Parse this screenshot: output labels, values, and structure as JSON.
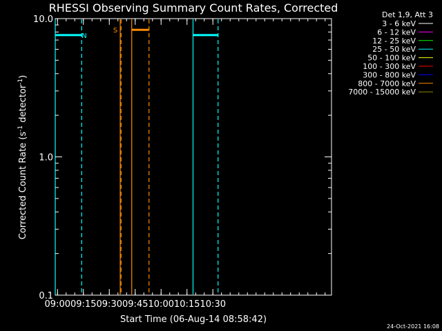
{
  "chart_data": {
    "type": "line",
    "title": "RHESSI Observing Summary Count Rates, Corrected",
    "xlabel": "Start Time (06-Aug-14 08:58:42)",
    "ylabel_prefix": "Corrected Count Rate (s",
    "ylabel_sup1": "-1",
    "ylabel_mid": " detector",
    "ylabel_sup2": "-1",
    "ylabel_suffix": ")",
    "y_scale": "log",
    "ylim": [
      0.1,
      10.0
    ],
    "xlim": [
      "08:58:42",
      "11:38:42"
    ],
    "x_ticks": [
      "09:00",
      "09:15",
      "09:30",
      "09:45",
      "10:00",
      "10:15",
      "10:30"
    ],
    "y_ticks": [
      "0.1",
      "1.0",
      "10.0"
    ],
    "legend_header": "Det 1,9, Att 3",
    "legend_placement": "right",
    "legend": [
      {
        "name": "3 - 6 keV",
        "color": "#ffffff"
      },
      {
        "name": "6 - 12 keV",
        "color": "#ff00ff"
      },
      {
        "name": "12 - 25 keV",
        "color": "#00ff00"
      },
      {
        "name": "25 - 50 keV",
        "color": "#00ffff"
      },
      {
        "name": "50 - 100 keV",
        "color": "#ffff00"
      },
      {
        "name": "100 - 300 keV",
        "color": "#ff0000"
      },
      {
        "name": "300 - 800 keV",
        "color": "#0000ff"
      },
      {
        "name": "800 - 7000 keV",
        "color": "#ff8c00"
      },
      {
        "name": "7000 - 15000 keV",
        "color": "#8b8b00"
      }
    ],
    "segments": [
      {
        "color": "#00ffff",
        "start": "08:58:42",
        "end": "09:14:00",
        "y": 7.6
      },
      {
        "color": "#00ffff",
        "start": "10:18:30",
        "end": "10:33:00",
        "y": 7.6
      },
      {
        "color": "#ff8c00",
        "start": "09:43:00",
        "end": "09:53:00",
        "y": 8.3
      }
    ],
    "markers": [
      {
        "time": "08:58:42",
        "color": "#00ffff",
        "style": "solid"
      },
      {
        "time": "09:14:00",
        "color": "#00ffff",
        "style": "dashed"
      },
      {
        "time": "09:36:20",
        "color": "#ff8c00",
        "style": "solid"
      },
      {
        "time": "09:36:50",
        "color": "#ff8c00",
        "style": "dashed"
      },
      {
        "time": "09:43:00",
        "color": "#ff8c00",
        "style": "solid"
      },
      {
        "time": "09:53:00",
        "color": "#ff8c00",
        "style": "dashed"
      },
      {
        "time": "10:18:30",
        "color": "#00ffff",
        "style": "solid"
      },
      {
        "time": "10:33:00",
        "color": "#00ffff",
        "style": "dashed"
      }
    ],
    "labels": [
      {
        "text": "N",
        "color": "#00ffff",
        "time": "09:15:30",
        "y": 7.6
      },
      {
        "text": "S",
        "color": "#ff8c00",
        "time": "09:33:30",
        "y": 8.3
      }
    ],
    "timestamp": "24-Oct-2021 16:08"
  }
}
